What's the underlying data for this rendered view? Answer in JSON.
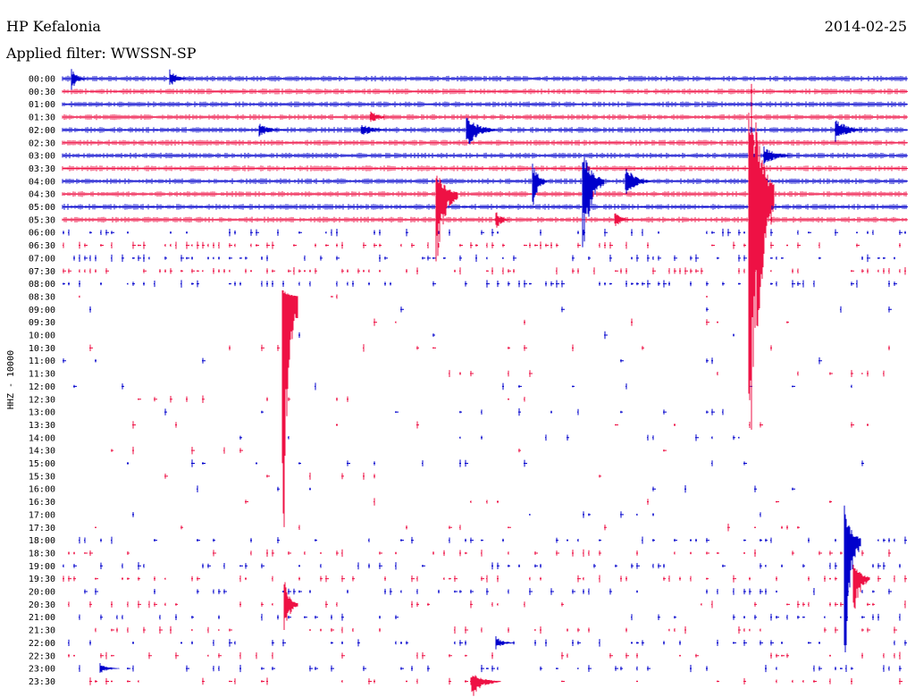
{
  "header": {
    "station": "HP Kefalonia",
    "date": "2014-02-25",
    "filter_label": "Applied filter: WWSSN-SP"
  },
  "chart_data": {
    "type": "line",
    "title": "HP Kefalonia",
    "ylabel": "HHZ - 10000",
    "rows": [
      "00:00",
      "00:30",
      "01:00",
      "01:30",
      "02:00",
      "02:30",
      "03:00",
      "03:30",
      "04:00",
      "04:30",
      "05:00",
      "05:30",
      "06:00",
      "06:30",
      "07:00",
      "07:30",
      "08:00",
      "08:30",
      "09:00",
      "09:30",
      "10:00",
      "10:30",
      "11:00",
      "11:30",
      "12:00",
      "12:30",
      "13:00",
      "13:30",
      "14:00",
      "14:30",
      "15:00",
      "15:30",
      "16:00",
      "16:30",
      "17:00",
      "17:30",
      "18:00",
      "18:30",
      "19:00",
      "19:30",
      "20:00",
      "20:30",
      "21:00",
      "21:30",
      "22:00",
      "22:30",
      "23:00",
      "23:30"
    ],
    "row_colors": [
      "#0000cc",
      "#ee1144"
    ],
    "grid": false
  }
}
